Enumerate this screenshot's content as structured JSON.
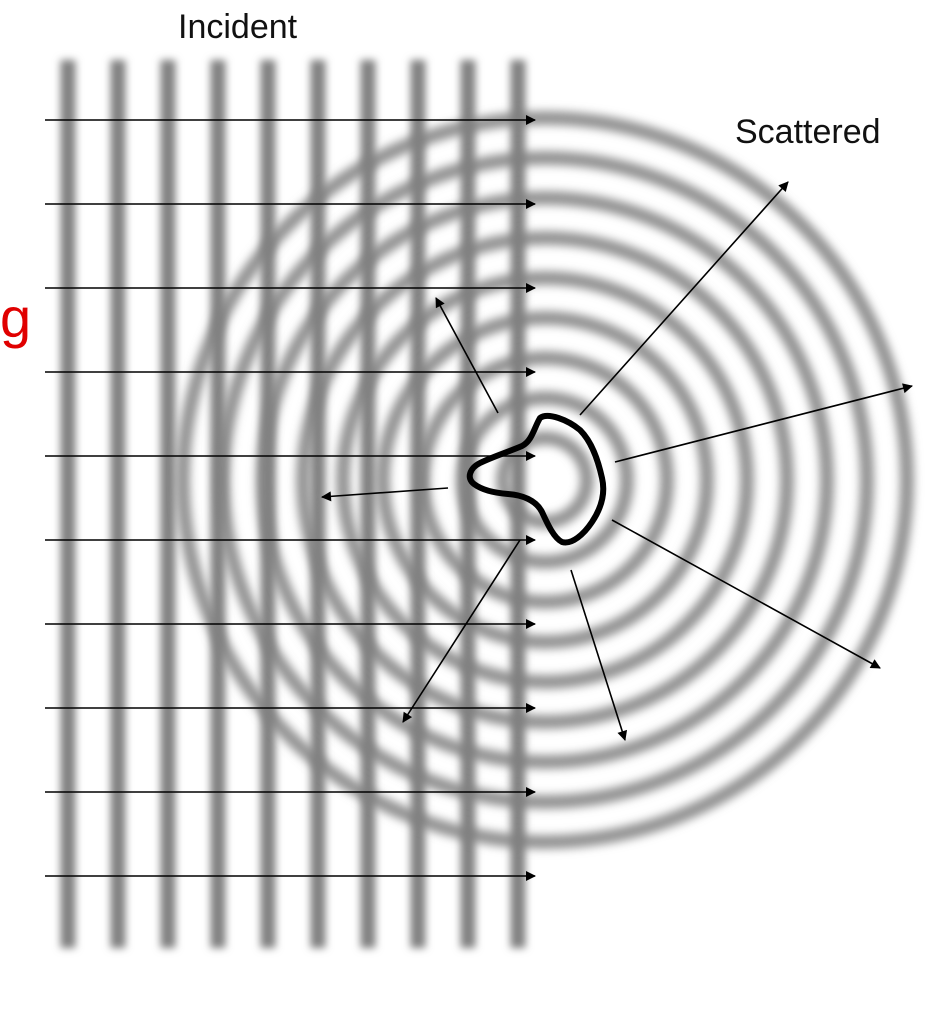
{
  "labels": {
    "incident": "Incident",
    "scattered": "Scattered",
    "clipped_edge_text": "g"
  },
  "colors": {
    "background": "#ffffff",
    "wavefront": "#808080",
    "arrow": "#000000",
    "scatterer_outline": "#000000",
    "clipped_text": "#e00000"
  },
  "icons": {
    "scatterer": "irregular-scatterer-outline",
    "arrow_head": "arrowhead-icon"
  },
  "diagram": {
    "incident_wavefront_count": 10,
    "incident_arrow_count": 10,
    "scattered_ring_count": 9,
    "scattered_arrow_count": 7
  }
}
